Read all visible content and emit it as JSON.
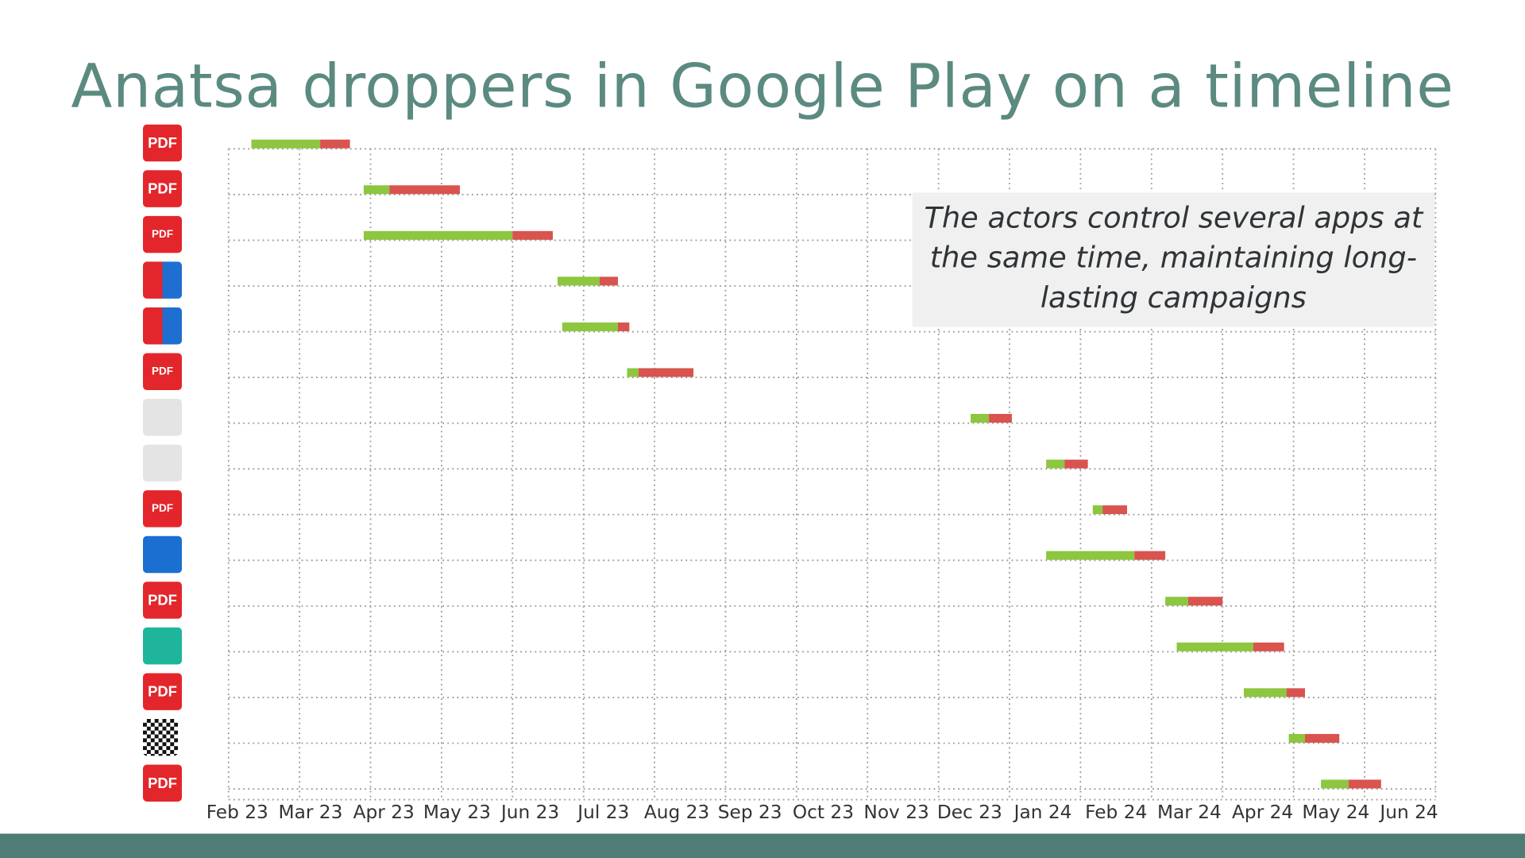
{
  "title": "Anatsa droppers in Google Play on a timeline",
  "callout": "The actors control several apps at the same time, maintaining long-lasting campaigns",
  "colors": {
    "title": "#5b8a80",
    "green": "#8dc63f",
    "red": "#d9534f",
    "footer": "#4f7c74",
    "callout_bg": "#f0f0f0"
  },
  "chart_data": {
    "type": "gantt",
    "title": "",
    "xlabel": "",
    "ylabel": "",
    "x_tick_labels": [
      "Feb 23",
      "Mar 23",
      "Apr 23",
      "May 23",
      "Jun 23",
      "Jul 23",
      "Aug 23",
      "Sep 23",
      "Oct 23",
      "Nov 23",
      "Dec 23",
      "Jan 24",
      "Feb 24",
      "Mar 24",
      "Apr 24",
      "May 24",
      "Jun 24"
    ],
    "xlim": [
      "2023-02-01",
      "2024-07-01"
    ],
    "grid": true,
    "segments_legend_colors": {
      "first_phase": "#8dc63f",
      "second_phase": "#d9534f"
    },
    "rows": [
      {
        "icon": "pdf-red-square-icon",
        "icon_text": "PDF",
        "start": "2023-02-10",
        "mid": "2023-03-10",
        "end": "2023-03-23"
      },
      {
        "icon": "pdf-editor-icon",
        "icon_text": "PDF",
        "start": "2023-03-29",
        "mid": "2023-04-09",
        "end": "2023-05-09"
      },
      {
        "icon": "pdf-file-icon",
        "icon_text": "PDF",
        "start": "2023-03-29",
        "mid": "2023-06-01",
        "end": "2023-06-18"
      },
      {
        "icon": "office-docs-grid-icon",
        "icon_text": "",
        "start": "2023-06-20",
        "mid": "2023-07-08",
        "end": "2023-07-16"
      },
      {
        "icon": "office-docs-grid-icon",
        "icon_text": "",
        "start": "2023-06-22",
        "mid": "2023-07-16",
        "end": "2023-07-21"
      },
      {
        "icon": "pdf-reader-icon",
        "icon_text": "PDF",
        "start": "2023-07-20",
        "mid": "2023-07-25",
        "end": "2023-08-18"
      },
      {
        "icon": "tablet-edit-icon",
        "icon_text": "",
        "start": "2023-12-15",
        "mid": "2023-12-23",
        "end": "2024-01-02"
      },
      {
        "icon": "wallet-icon",
        "icon_text": "",
        "start": "2024-01-17",
        "mid": "2024-01-25",
        "end": "2024-02-04"
      },
      {
        "icon": "pdf-doc-icon",
        "icon_text": "PDF",
        "start": "2024-02-06",
        "mid": "2024-02-10",
        "end": "2024-02-20"
      },
      {
        "icon": "cleaner-brush-icon",
        "icon_text": "",
        "start": "2024-01-17",
        "mid": "2024-02-23",
        "end": "2024-03-07"
      },
      {
        "icon": "pdf-document-icon",
        "icon_text": "PDF",
        "start": "2024-03-07",
        "mid": "2024-03-17",
        "end": "2024-04-01"
      },
      {
        "icon": "folder-manager-icon",
        "icon_text": "",
        "start": "2024-03-12",
        "mid": "2024-04-14",
        "end": "2024-04-27"
      },
      {
        "icon": "pdf-red-file-icon",
        "icon_text": "PDF",
        "start": "2024-04-10",
        "mid": "2024-04-28",
        "end": "2024-05-06"
      },
      {
        "icon": "qr-code-icon",
        "icon_text": "",
        "start": "2024-04-29",
        "mid": "2024-05-06",
        "end": "2024-05-21"
      },
      {
        "icon": "pdf-badge-icon",
        "icon_text": "PDF",
        "start": "2024-05-13",
        "mid": "2024-05-25",
        "end": "2024-06-08"
      }
    ]
  }
}
